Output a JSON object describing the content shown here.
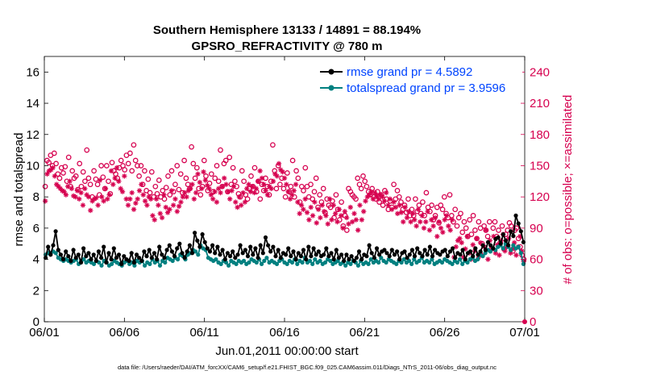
{
  "colors": {
    "rmse": "#000000",
    "totalspread": "#008080",
    "obs": "#d6004f",
    "legend_text": "#0044ff"
  },
  "chart_data": {
    "type": "line",
    "title": "Southern Hemisphere 13133 / 14891 = 88.194%",
    "subtitle": "GPSRO_REFRACTIVITY @ 780 m",
    "xlabel": "Jun.01,2011 00:00:00 start",
    "ylabel": "rmse and totalspread",
    "ylabel_right": "# of obs: o=possible; ×=assimilated",
    "footnote": "data file: /Users/raeder/DAI/ATM_forcXX/CAM6_setup/f.e21.FHIST_BGC.f09_025.CAM6assim.011/Diags_NTrS_2011-06/obs_diag_output.nc",
    "xlim": [
      0,
      30
    ],
    "ylim": [
      0,
      17
    ],
    "ylim_right": [
      0,
      255
    ],
    "x_ticks": [
      0,
      5,
      10,
      15,
      20,
      25,
      30
    ],
    "x_tick_labels": [
      "06/01",
      "06/06",
      "06/11",
      "06/16",
      "06/21",
      "06/26",
      "07/01"
    ],
    "y_ticks": [
      0,
      2,
      4,
      6,
      8,
      10,
      12,
      14,
      16
    ],
    "y_ticks_right": [
      0,
      30,
      60,
      90,
      120,
      150,
      180,
      210,
      240
    ],
    "legend": [
      {
        "label": "rmse grand pr = 4.5892",
        "series": "rmse"
      },
      {
        "label": "totalspread grand pr = 3.9596",
        "series": "totalspread"
      }
    ],
    "series": [
      {
        "name": "rmse",
        "axis": "left",
        "values": [
          4.1,
          4.8,
          4.3,
          4.9,
          5.8,
          4.6,
          4.3,
          4.0,
          4.5,
          4.2,
          3.9,
          4.6,
          4.1,
          4.3,
          3.8,
          4.7,
          4.2,
          4.4,
          4.0,
          4.3,
          3.9,
          4.5,
          4.1,
          4.8,
          3.8,
          4.4,
          4.0,
          4.7,
          4.1,
          4.3,
          3.7,
          4.2,
          4.0,
          3.9,
          4.4,
          3.8,
          4.3,
          4.1,
          3.9,
          4.5,
          4.2,
          4.6,
          4.1,
          4.4,
          4.0,
          4.8,
          4.3,
          4.1,
          4.6,
          4.9,
          4.5,
          4.2,
          4.7,
          5.0,
          4.4,
          4.1,
          4.5,
          4.9,
          4.4,
          5.7,
          5.2,
          4.8,
          5.6,
          5.1,
          4.7,
          4.5,
          4.9,
          4.4,
          4.8,
          4.3,
          4.6,
          4.0,
          4.4,
          4.2,
          4.5,
          4.1,
          4.3,
          4.9,
          4.4,
          4.6,
          4.2,
          4.8,
          4.3,
          4.7,
          4.1,
          4.9,
          4.4,
          5.4,
          4.9,
          4.5,
          4.8,
          4.2,
          4.6,
          4.1,
          4.4,
          4.3,
          4.7,
          4.2,
          4.5,
          4.0,
          4.4,
          4.2,
          4.6,
          4.0,
          4.8,
          4.2,
          4.7,
          4.3,
          4.5,
          4.2,
          4.3,
          4.7,
          4.2,
          4.4,
          4.0,
          4.6,
          4.1,
          4.3,
          3.9,
          4.3,
          4.0,
          4.2,
          3.9,
          4.1,
          4.5,
          4.0,
          4.3,
          4.2,
          4.9,
          4.4,
          4.1,
          4.7,
          4.3,
          4.5,
          4.6,
          4.4,
          4.2,
          4.6,
          4.3,
          4.5,
          4.0,
          4.4,
          4.5,
          4.1,
          4.3,
          4.6,
          4.2,
          4.7,
          4.4,
          4.2,
          4.6,
          4.3,
          4.8,
          4.2,
          4.6,
          4.4,
          4.3,
          4.5,
          4.6,
          4.2,
          4.5,
          4.7,
          4.1,
          4.4,
          4.3,
          4.6,
          4.0,
          4.4,
          4.5,
          4.2,
          4.7,
          4.3,
          4.5,
          4.9,
          4.6,
          5.1,
          4.9,
          4.7,
          5.3,
          5.4,
          5.0,
          5.6,
          5.2,
          4.9,
          5.8,
          5.5,
          6.8,
          6.3,
          5.8,
          5.1
        ]
      },
      {
        "name": "totalspread",
        "axis": "left",
        "values": [
          4.3,
          4.4,
          4.4,
          4.5,
          4.4,
          4.1,
          4.0,
          3.9,
          4.0,
          3.9,
          3.8,
          3.9,
          4.0,
          3.7,
          3.9,
          4.0,
          3.8,
          3.9,
          3.8,
          3.7,
          3.9,
          3.8,
          3.6,
          3.9,
          3.8,
          3.6,
          3.7,
          3.9,
          3.8,
          3.7,
          3.6,
          3.8,
          3.9,
          3.7,
          3.8,
          3.6,
          3.9,
          3.8,
          3.9,
          3.6,
          3.8,
          3.7,
          4.0,
          3.8,
          3.9,
          3.6,
          3.9,
          3.8,
          4.1,
          4.0,
          3.9,
          4.1,
          4.0,
          4.3,
          4.2,
          4.0,
          4.3,
          4.4,
          4.6,
          4.5,
          4.3,
          4.9,
          4.7,
          4.6,
          4.1,
          4.0,
          3.9,
          4.0,
          3.8,
          3.7,
          3.9,
          3.8,
          3.6,
          3.9,
          3.8,
          3.7,
          3.9,
          3.8,
          3.9,
          3.7,
          3.8,
          4.0,
          3.9,
          3.8,
          4.0,
          3.7,
          3.9,
          4.1,
          3.8,
          3.9,
          3.8,
          3.7,
          3.9,
          4.0,
          3.8,
          3.7,
          3.9,
          3.8,
          4.0,
          3.7,
          3.9,
          3.8,
          4.1,
          3.8,
          3.9,
          3.7,
          4.0,
          3.8,
          3.9,
          3.7,
          3.8,
          4.0,
          3.9,
          3.7,
          3.8,
          3.9,
          3.7,
          3.8,
          3.6,
          3.8,
          3.7,
          3.9,
          3.8,
          3.6,
          3.9,
          3.7,
          3.8,
          3.7,
          4.0,
          3.8,
          3.9,
          3.8,
          4.1,
          3.9,
          3.8,
          4.0,
          3.9,
          3.8,
          3.7,
          3.9,
          3.8,
          4.0,
          3.8,
          3.9,
          3.7,
          4.0,
          3.8,
          3.9,
          4.1,
          3.8,
          3.9,
          3.8,
          4.0,
          3.7,
          3.8,
          3.9,
          3.8,
          4.0,
          3.9,
          3.8,
          3.7,
          3.9,
          3.8,
          4.0,
          3.7,
          3.9,
          3.8,
          4.0,
          4.1,
          3.9,
          4.0,
          4.3,
          4.2,
          4.4,
          4.6,
          4.5,
          4.7,
          4.6,
          4.8,
          4.9,
          4.7,
          5.0,
          4.8,
          4.6,
          4.9,
          4.7,
          4.8,
          4.4,
          3.7
        ]
      },
      {
        "name": "possible",
        "axis": "right",
        "values": [
          130,
          155,
          153,
          160,
          150,
          162,
          152,
          142,
          138,
          148,
          143,
          149,
          135,
          158,
          130,
          145,
          138,
          140,
          127,
          152,
          130,
          144,
          135,
          165,
          138,
          132,
          120,
          145,
          137,
          132,
          122,
          150,
          139,
          128,
          150,
          135,
          123,
          153,
          145,
          142,
          138,
          148,
          155,
          150,
          146,
          160,
          152,
          162,
          145,
          170,
          155,
          150,
          140,
          150,
          132,
          145,
          126,
          137,
          124,
          144,
          120,
          130,
          123,
          136,
          120,
          126,
          118,
          129,
          140,
          122,
          145,
          125,
          132,
          150,
          127,
          142,
          124,
          155,
          138,
          132,
          128,
          168,
          152,
          138,
          148,
          128,
          122,
          130,
          155,
          140,
          126,
          133,
          142,
          125,
          138,
          150,
          135,
          165,
          130,
          152,
          155,
          125,
          158,
          132,
          148,
          135,
          130,
          123,
          120,
          145,
          135,
          122,
          118,
          128,
          140,
          130,
          148,
          125,
          135,
          118,
          132,
          126,
          138,
          130,
          122,
          135,
          170,
          145,
          128,
          150,
          132,
          138,
          128,
          120,
          143,
          125,
          130,
          155,
          120,
          145,
          138,
          115,
          130,
          126,
          148,
          130,
          120,
          132,
          118,
          125,
          138,
          110,
          122,
          115,
          128,
          105,
          118,
          112,
          110,
          116,
          100,
          122,
          108,
          98,
          115,
          92,
          102,
          88,
          128,
          125,
          122,
          120,
          118,
          138,
          132,
          128,
          140,
          135,
          130,
          125,
          122,
          128,
          120,
          118,
          125,
          115,
          122,
          112,
          126,
          118,
          108,
          116,
          110,
          132,
          118,
          126,
          120,
          115,
          108,
          112,
          105,
          118,
          102,
          108,
          102,
          118,
          106,
          112,
          104,
          115,
          102,
          124,
          110,
          106,
          112,
          98,
          102,
          110,
          95,
          112,
          108,
          120,
          104,
          100,
          122,
          102,
          96,
          108,
          92,
          100,
          104,
          86,
          96,
          90,
          82,
          98,
          84,
          102,
          88,
          80,
          96,
          90,
          75,
          92,
          88,
          82,
          96,
          70,
          90,
          96,
          82,
          88,
          76,
          92,
          70,
          84,
          88,
          95,
          92,
          68,
          88,
          90,
          80,
          72,
          64,
          60
        ]
      },
      {
        "name": "assimilated",
        "axis": "right",
        "values": [
          116,
          142,
          145,
          146,
          148,
          140,
          132,
          130,
          128,
          126,
          125,
          122,
          130,
          135,
          128,
          121,
          120,
          126,
          118,
          124,
          112,
          128,
          122,
          120,
          107,
          116,
          118,
          119,
          112,
          136,
          120,
          116,
          128,
          118,
          122,
          145,
          132,
          138,
          148,
          135,
          128,
          125,
          140,
          118,
          112,
          118,
          124,
          108,
          114,
          118,
          126,
          132,
          122,
          116,
          112,
          120,
          118,
          102,
          98,
          118,
          112,
          104,
          100,
          122,
          110,
          105,
          108,
          126,
          112,
          118,
          106,
          111,
          115,
          120,
          124,
          120,
          126,
          128,
          132,
          118,
          124,
          142,
          134,
          128,
          144,
          136,
          131,
          128,
          122,
          118,
          125,
          115,
          128,
          124,
          130,
          138,
          132,
          125,
          118,
          126,
          130,
          115,
          110,
          120,
          112,
          124,
          115,
          128,
          132,
          125,
          130,
          124,
          128,
          135,
          145,
          138,
          132,
          126,
          122,
          130,
          128,
          135,
          142,
          140,
          152,
          146,
          144,
          138,
          132,
          125,
          118,
          122,
          126,
          132,
          115,
          104,
          112,
          108,
          118,
          105,
          98,
          110,
          102,
          115,
          95,
          108,
          100,
          112,
          106,
          102,
          94,
          118,
          98,
          112,
          104,
          96,
          108,
          102,
          90,
          106,
          100,
          94,
          110,
          96,
          104,
          98,
          88,
          112,
          98,
          106,
          116,
          120,
          122,
          125,
          118,
          124,
          121,
          118,
          122,
          120,
          116,
          124,
          112,
          118,
          108,
          115,
          110,
          104,
          112,
          105,
          96,
          110,
          100,
          106,
          96,
          104,
          98,
          92,
          108,
          96,
          102,
          90,
          96,
          106,
          88,
          98,
          92,
          100,
          82,
          96,
          90,
          86,
          98,
          102,
          92,
          88,
          98,
          62,
          72,
          78,
          80,
          76,
          62,
          70,
          82,
          66,
          60,
          74,
          68,
          80,
          62,
          76,
          64,
          72,
          88,
          60,
          78,
          70,
          82,
          66,
          74,
          64,
          78,
          84,
          68,
          72,
          80,
          66,
          70,
          76,
          64,
          72,
          82,
          68,
          58
        ]
      }
    ]
  }
}
